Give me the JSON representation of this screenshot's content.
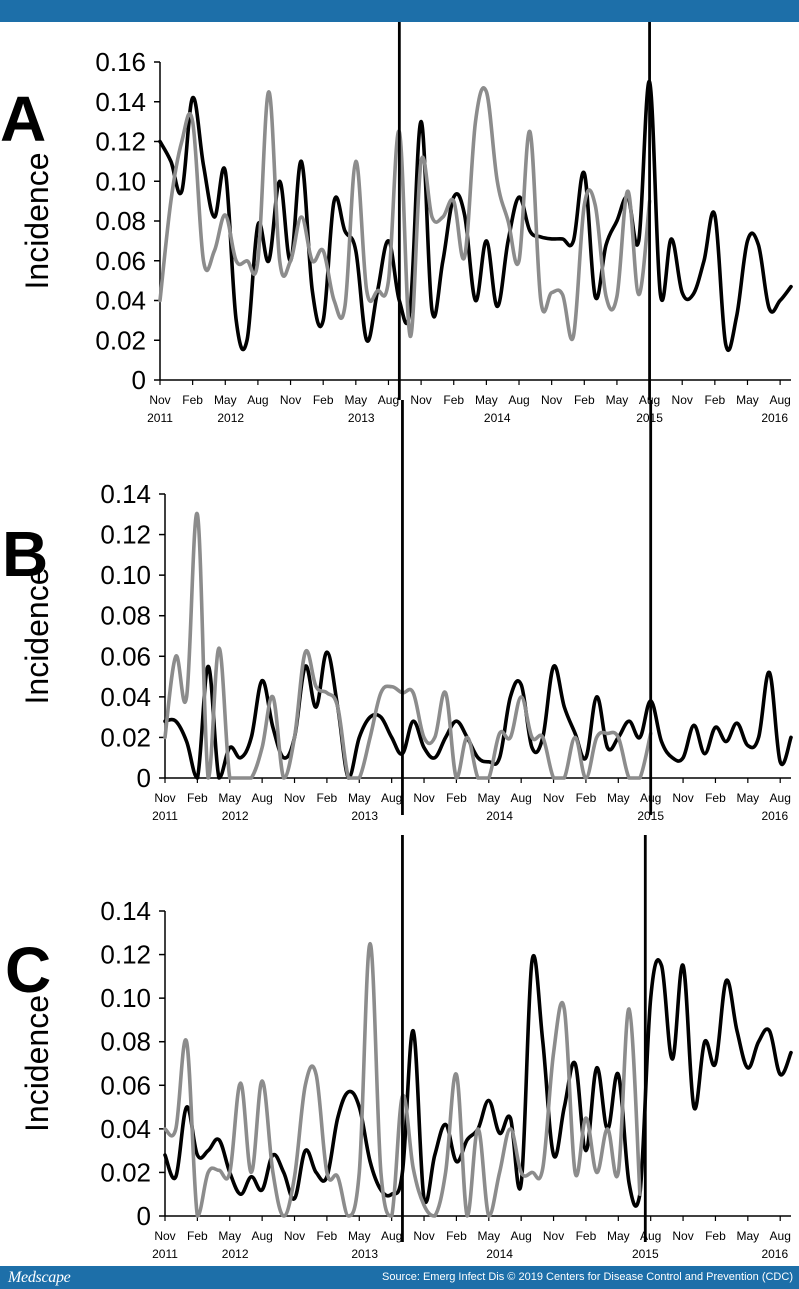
{
  "footer": {
    "logo": "Medscape",
    "source": "Source: Emerg Infect Dis © 2019 Centers for Disease Control and Prevention (CDC)"
  },
  "colors": {
    "header": "#1d6fa9",
    "series1": "#000000",
    "series2": "#8c8c8c"
  },
  "chart_data": [
    {
      "type": "line",
      "panel_label": "A",
      "ylabel": "Incidence",
      "ylim": [
        0,
        0.16
      ],
      "yticks": [
        0,
        0.02,
        0.04,
        0.06,
        0.08,
        0.1,
        0.12,
        0.14,
        0.16
      ],
      "ytick_labels": [
        "0",
        "0.02",
        "0.04",
        "0.06",
        "0.08",
        "0.10",
        "0.12",
        "0.14",
        "0.16"
      ],
      "xlim": [
        0,
        58
      ],
      "xtick_positions": [
        0,
        3,
        6,
        9,
        12,
        15,
        18,
        21,
        24,
        27,
        30,
        33,
        36,
        39,
        42,
        45,
        48,
        51,
        54,
        57
      ],
      "xtick_months": [
        "Nov",
        "Feb",
        "May",
        "Aug",
        "Nov",
        "Feb",
        "May",
        "Aug",
        "Nov",
        "Feb",
        "May",
        "Aug",
        "Nov",
        "Feb",
        "May",
        "Aug",
        "Nov",
        "Feb",
        "May",
        "Aug"
      ],
      "xtick_years": [
        {
          "x": 0,
          "label": "2011"
        },
        {
          "x": 6.5,
          "label": "2012"
        },
        {
          "x": 18.5,
          "label": "2013"
        },
        {
          "x": 31,
          "label": "2014"
        },
        {
          "x": 45,
          "label": "2015"
        },
        {
          "x": 56.5,
          "label": "2016"
        }
      ],
      "vlines": [
        22,
        45
      ],
      "series": [
        {
          "name": "Series 1 (black)",
          "x": [
            0,
            1,
            2,
            3,
            4,
            5,
            6,
            7,
            8,
            9,
            10,
            11,
            12,
            13,
            14,
            15,
            16,
            17,
            18,
            19,
            20,
            21,
            22,
            23,
            24,
            25,
            26,
            27,
            28,
            29,
            30,
            31,
            32,
            33,
            34,
            35,
            36,
            37,
            38,
            39,
            40,
            41,
            42,
            43,
            44,
            45,
            46,
            47,
            48,
            49,
            50,
            51,
            52,
            53,
            54,
            55,
            56,
            57,
            58
          ],
          "values": [
            0.12,
            0.11,
            0.095,
            0.142,
            0.108,
            0.082,
            0.105,
            0.03,
            0.02,
            0.078,
            0.06,
            0.1,
            0.06,
            0.11,
            0.045,
            0.03,
            0.09,
            0.075,
            0.065,
            0.02,
            0.045,
            0.07,
            0.04,
            0.036,
            0.13,
            0.035,
            0.06,
            0.092,
            0.083,
            0.04,
            0.07,
            0.037,
            0.07,
            0.092,
            0.075,
            0.072,
            0.071,
            0.071,
            0.07,
            0.104,
            0.042,
            0.068,
            0.08,
            0.092,
            0.07,
            0.15,
            0.043,
            0.071,
            0.044,
            0.043,
            0.06,
            0.083,
            0.018,
            0.032,
            0.07,
            0.068,
            0.036,
            0.04,
            0.047
          ]
        },
        {
          "name": "Series 2 (gray)",
          "x": [
            0,
            1,
            2,
            3,
            4,
            5,
            6,
            7,
            8,
            9,
            10,
            11,
            12,
            13,
            14,
            15,
            16,
            17,
            18,
            19,
            20,
            21,
            22,
            23,
            24,
            25,
            26,
            27,
            28,
            29,
            30,
            31,
            32,
            33,
            34,
            35,
            36,
            37,
            38,
            39,
            40,
            41,
            42,
            43,
            44,
            45
          ],
          "values": [
            0.04,
            0.09,
            0.12,
            0.13,
            0.06,
            0.065,
            0.083,
            0.06,
            0.06,
            0.06,
            0.145,
            0.06,
            0.06,
            0.082,
            0.06,
            0.065,
            0.04,
            0.037,
            0.11,
            0.045,
            0.045,
            0.05,
            0.125,
            0.022,
            0.11,
            0.082,
            0.082,
            0.09,
            0.062,
            0.13,
            0.145,
            0.1,
            0.08,
            0.06,
            0.125,
            0.04,
            0.044,
            0.043,
            0.022,
            0.088,
            0.088,
            0.042,
            0.042,
            0.095,
            0.043,
            0.09
          ]
        }
      ]
    },
    {
      "type": "line",
      "panel_label": "B",
      "ylabel": "Incidence",
      "ylim": [
        0,
        0.14
      ],
      "yticks": [
        0,
        0.02,
        0.04,
        0.06,
        0.08,
        0.1,
        0.12,
        0.14
      ],
      "ytick_labels": [
        "0",
        "0.02",
        "0.04",
        "0.06",
        "0.08",
        "0.10",
        "0.12",
        "0.14"
      ],
      "xlim": [
        0,
        58
      ],
      "xtick_positions": [
        0,
        3,
        6,
        9,
        12,
        15,
        18,
        21,
        24,
        27,
        30,
        33,
        36,
        39,
        42,
        45,
        48,
        51,
        54,
        57
      ],
      "xtick_months": [
        "Nov",
        "Feb",
        "May",
        "Aug",
        "Nov",
        "Feb",
        "May",
        "Aug",
        "Nov",
        "Feb",
        "May",
        "Aug",
        "Nov",
        "Feb",
        "May",
        "Aug",
        "Nov",
        "Feb",
        "May",
        "Aug"
      ],
      "xtick_years": [
        {
          "x": 0,
          "label": "2011"
        },
        {
          "x": 6.5,
          "label": "2012"
        },
        {
          "x": 18.5,
          "label": "2013"
        },
        {
          "x": 31,
          "label": "2014"
        },
        {
          "x": 45,
          "label": "2015"
        },
        {
          "x": 56.5,
          "label": "2016"
        }
      ],
      "vlines": [
        22,
        45
      ],
      "series": [
        {
          "name": "Series 1 (black)",
          "x": [
            0,
            1,
            2,
            3,
            4,
            5,
            6,
            7,
            8,
            9,
            10,
            11,
            12,
            13,
            14,
            15,
            16,
            17,
            18,
            19,
            20,
            21,
            22,
            23,
            24,
            25,
            26,
            27,
            28,
            29,
            30,
            31,
            32,
            33,
            34,
            35,
            36,
            37,
            38,
            39,
            40,
            41,
            42,
            43,
            44,
            45,
            46,
            47,
            48,
            49,
            50,
            51,
            52,
            53,
            54,
            55,
            56,
            57,
            58
          ],
          "values": [
            0.028,
            0.028,
            0.018,
            0.0,
            0.055,
            0.0,
            0.015,
            0.01,
            0.02,
            0.048,
            0.025,
            0.01,
            0.02,
            0.055,
            0.035,
            0.062,
            0.035,
            0.0,
            0.02,
            0.03,
            0.03,
            0.02,
            0.012,
            0.028,
            0.015,
            0.01,
            0.02,
            0.028,
            0.02,
            0.01,
            0.008,
            0.01,
            0.04,
            0.046,
            0.015,
            0.02,
            0.055,
            0.035,
            0.022,
            0.01,
            0.04,
            0.015,
            0.02,
            0.028,
            0.02,
            0.038,
            0.018,
            0.01,
            0.01,
            0.026,
            0.012,
            0.025,
            0.018,
            0.027,
            0.016,
            0.02,
            0.052,
            0.008,
            0.02
          ]
        },
        {
          "name": "Series 2 (gray)",
          "x": [
            0,
            1,
            2,
            3,
            4,
            5,
            6,
            7,
            8,
            9,
            10,
            11,
            12,
            13,
            14,
            15,
            16,
            17,
            18,
            19,
            20,
            21,
            22,
            23,
            24,
            25,
            26,
            27,
            28,
            29,
            30,
            31,
            32,
            33,
            34,
            35,
            36,
            37,
            38,
            39,
            40,
            41,
            42,
            43,
            44,
            45
          ],
          "values": [
            0.02,
            0.06,
            0.04,
            0.13,
            0.0,
            0.064,
            0.0,
            0.0,
            0.0,
            0.015,
            0.04,
            0.0,
            0.02,
            0.062,
            0.045,
            0.042,
            0.035,
            0.0,
            0.0,
            0.02,
            0.042,
            0.045,
            0.042,
            0.042,
            0.02,
            0.02,
            0.042,
            0.0,
            0.02,
            0.0,
            0.0,
            0.022,
            0.02,
            0.04,
            0.02,
            0.02,
            0.0,
            0.0,
            0.02,
            0.0,
            0.02,
            0.022,
            0.02,
            0.0,
            0.0,
            0.022
          ]
        }
      ]
    },
    {
      "type": "line",
      "panel_label": "C",
      "ylabel": "Incidence",
      "ylim": [
        0,
        0.14
      ],
      "yticks": [
        0,
        0.02,
        0.04,
        0.06,
        0.08,
        0.1,
        0.12,
        0.14
      ],
      "ytick_labels": [
        "0",
        "0.02",
        "0.04",
        "0.06",
        "0.08",
        "0.10",
        "0.12",
        "0.14"
      ],
      "xlim": [
        0,
        58
      ],
      "xtick_positions": [
        0,
        3,
        6,
        9,
        12,
        15,
        18,
        21,
        24,
        27,
        30,
        33,
        36,
        39,
        42,
        45,
        48,
        51,
        54,
        57
      ],
      "xtick_months": [
        "Nov",
        "Feb",
        "May",
        "Aug",
        "Nov",
        "Feb",
        "May",
        "Aug",
        "Nov",
        "Feb",
        "May",
        "Aug",
        "Nov",
        "Feb",
        "May",
        "Aug",
        "Nov",
        "Feb",
        "May",
        "Aug"
      ],
      "xtick_years": [
        {
          "x": 0,
          "label": "2011"
        },
        {
          "x": 6.5,
          "label": "2012"
        },
        {
          "x": 18.5,
          "label": "2013"
        },
        {
          "x": 31,
          "label": "2014"
        },
        {
          "x": 44.5,
          "label": "2015"
        },
        {
          "x": 56.5,
          "label": "2016"
        }
      ],
      "vlines": [
        22,
        44.5
      ],
      "series": [
        {
          "name": "Series 1 (black)",
          "x": [
            0,
            1,
            2,
            3,
            4,
            5,
            6,
            7,
            8,
            9,
            10,
            11,
            12,
            13,
            14,
            15,
            16,
            17,
            18,
            19,
            20,
            21,
            22,
            23,
            24,
            25,
            26,
            27,
            28,
            29,
            30,
            31,
            32,
            33,
            34,
            35,
            36,
            37,
            38,
            39,
            40,
            41,
            42,
            43,
            44,
            45,
            46,
            47,
            48,
            49,
            50,
            51,
            52,
            53,
            54,
            55,
            56,
            57,
            58
          ],
          "values": [
            0.028,
            0.018,
            0.05,
            0.028,
            0.03,
            0.035,
            0.02,
            0.01,
            0.018,
            0.012,
            0.028,
            0.02,
            0.008,
            0.03,
            0.02,
            0.018,
            0.045,
            0.057,
            0.05,
            0.025,
            0.012,
            0.01,
            0.02,
            0.085,
            0.008,
            0.028,
            0.042,
            0.025,
            0.035,
            0.04,
            0.053,
            0.038,
            0.045,
            0.015,
            0.117,
            0.08,
            0.028,
            0.05,
            0.07,
            0.03,
            0.068,
            0.04,
            0.065,
            0.015,
            0.01,
            0.1,
            0.115,
            0.072,
            0.115,
            0.05,
            0.08,
            0.07,
            0.108,
            0.085,
            0.068,
            0.08,
            0.085,
            0.065,
            0.075
          ]
        },
        {
          "name": "Series 2 (gray)",
          "x": [
            0,
            1,
            2,
            3,
            4,
            5,
            6,
            7,
            8,
            9,
            10,
            11,
            12,
            13,
            14,
            15,
            16,
            17,
            18,
            19,
            20,
            21,
            22,
            23,
            24,
            25,
            26,
            27,
            28,
            29,
            30,
            31,
            32,
            33,
            34,
            35,
            36,
            37,
            38,
            39,
            40,
            41,
            42,
            43,
            44
          ],
          "values": [
            0.04,
            0.04,
            0.08,
            0.0,
            0.02,
            0.021,
            0.02,
            0.061,
            0.02,
            0.062,
            0.02,
            0.0,
            0.018,
            0.06,
            0.065,
            0.02,
            0.018,
            0.0,
            0.02,
            0.125,
            0.02,
            0.0,
            0.055,
            0.022,
            0.005,
            0.0,
            0.02,
            0.065,
            0.0,
            0.04,
            0.0,
            0.02,
            0.04,
            0.02,
            0.02,
            0.022,
            0.075,
            0.095,
            0.02,
            0.045,
            0.02,
            0.04,
            0.02,
            0.095,
            0.01
          ]
        }
      ]
    }
  ]
}
